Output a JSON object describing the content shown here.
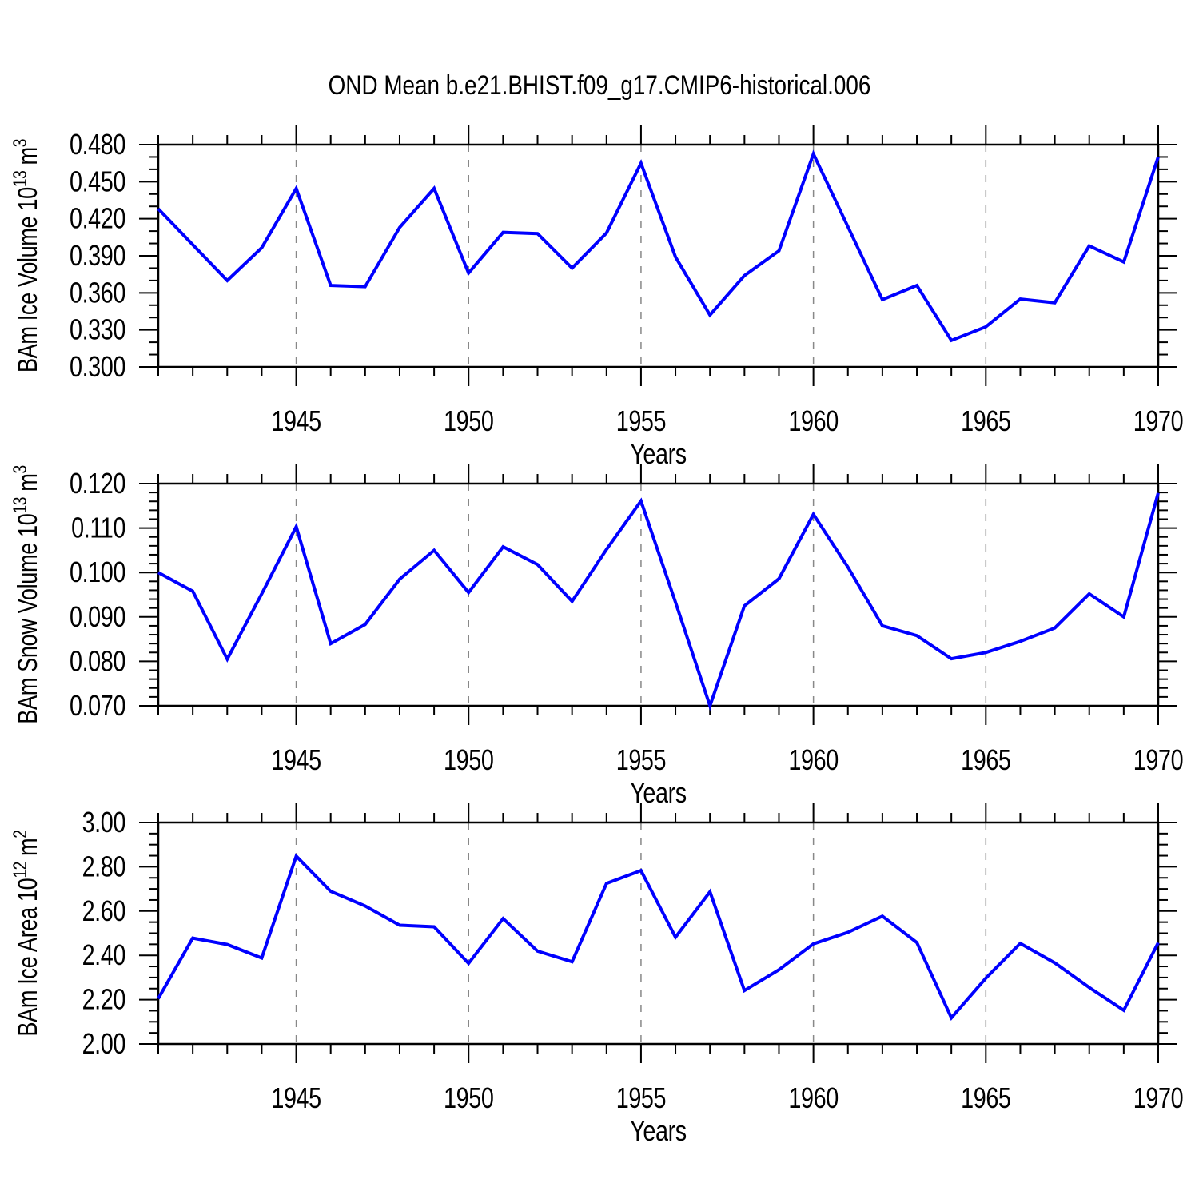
{
  "header": {
    "title": "OND Mean b.e21.BHIST.f09_g17.CMIP6-historical.006"
  },
  "chart_data": [
    {
      "id": "ice-volume",
      "type": "line",
      "xlabel": "Years",
      "ylabel_parts": [
        [
          "BAm Ice Volume 10",
          false
        ],
        [
          "13",
          true
        ],
        [
          " m",
          false
        ],
        [
          "3",
          true
        ]
      ],
      "line_color": "#0000ff",
      "xlim": [
        1941,
        1970
      ],
      "ylim": [
        0.3,
        0.48
      ],
      "x_gridlines": [
        1945,
        1950,
        1955,
        1960,
        1965
      ],
      "xticks": {
        "values": [
          1945,
          1950,
          1955,
          1960,
          1965,
          1970
        ],
        "labels": [
          "1945",
          "1950",
          "1955",
          "1960",
          "1965",
          "1970"
        ]
      },
      "yticks": {
        "values": [
          0.3,
          0.33,
          0.36,
          0.39,
          0.42,
          0.45,
          0.48
        ],
        "labels": [
          "0.300",
          "0.330",
          "0.360",
          "0.390",
          "0.420",
          "0.450",
          "0.480"
        ]
      },
      "yminor_div": 3,
      "x": [
        1941,
        1942,
        1943,
        1944,
        1945,
        1946,
        1947,
        1948,
        1949,
        1950,
        1951,
        1952,
        1953,
        1954,
        1955,
        1956,
        1957,
        1958,
        1959,
        1960,
        1961,
        1962,
        1963,
        1964,
        1965,
        1966,
        1967,
        1968,
        1969,
        1970
      ],
      "values": [
        0.428,
        0.399,
        0.37,
        0.3965,
        0.4445,
        0.366,
        0.365,
        0.413,
        0.4445,
        0.376,
        0.409,
        0.408,
        0.38,
        0.4085,
        0.465,
        0.389,
        0.342,
        0.374,
        0.394,
        0.4725,
        0.4135,
        0.3545,
        0.366,
        0.3215,
        0.3325,
        0.355,
        0.352,
        0.398,
        0.385,
        0.47
      ]
    },
    {
      "id": "snow-volume",
      "type": "line",
      "xlabel": "Years",
      "ylabel_parts": [
        [
          "BAm Snow Volume 10",
          false
        ],
        [
          "13",
          true
        ],
        [
          " m",
          false
        ],
        [
          "3",
          true
        ]
      ],
      "line_color": "#0000ff",
      "xlim": [
        1941,
        1970
      ],
      "ylim": [
        0.07,
        0.12
      ],
      "x_gridlines": [
        1945,
        1950,
        1955,
        1960,
        1965
      ],
      "xticks": {
        "values": [
          1945,
          1950,
          1955,
          1960,
          1965,
          1970
        ],
        "labels": [
          "1945",
          "1950",
          "1955",
          "1960",
          "1965",
          "1970"
        ]
      },
      "yticks": {
        "values": [
          0.07,
          0.08,
          0.09,
          0.1,
          0.11,
          0.12
        ],
        "labels": [
          "0.070",
          "0.080",
          "0.090",
          "0.100",
          "0.110",
          "0.120"
        ]
      },
      "yminor_div": 5,
      "x": [
        1941,
        1942,
        1943,
        1944,
        1945,
        1946,
        1947,
        1948,
        1949,
        1950,
        1951,
        1952,
        1953,
        1954,
        1955,
        1956,
        1957,
        1958,
        1959,
        1960,
        1961,
        1962,
        1963,
        1964,
        1965,
        1966,
        1967,
        1968,
        1969,
        1970
      ],
      "values": [
        0.1,
        0.0958,
        0.0805,
        0.0952,
        0.1103,
        0.084,
        0.0883,
        0.0985,
        0.105,
        0.0955,
        0.1058,
        0.1018,
        0.0935,
        0.1052,
        0.1161,
        0.0933,
        0.07,
        0.0925,
        0.0986,
        0.1131,
        0.1012,
        0.088,
        0.0858,
        0.0806,
        0.082,
        0.0845,
        0.0875,
        0.0952,
        0.09,
        0.1179
      ]
    },
    {
      "id": "ice-area",
      "type": "line",
      "xlabel": "Years",
      "ylabel_parts": [
        [
          "BAm Ice Area 10",
          false
        ],
        [
          "12",
          true
        ],
        [
          " m",
          false
        ],
        [
          "2",
          true
        ]
      ],
      "line_color": "#0000ff",
      "xlim": [
        1941,
        1970
      ],
      "ylim": [
        2.0,
        3.0
      ],
      "x_gridlines": [
        1945,
        1950,
        1955,
        1960,
        1965
      ],
      "xticks": {
        "values": [
          1945,
          1950,
          1955,
          1960,
          1965,
          1970
        ],
        "labels": [
          "1945",
          "1950",
          "1955",
          "1960",
          "1965",
          "1970"
        ]
      },
      "yticks": {
        "values": [
          2.0,
          2.2,
          2.4,
          2.6,
          2.8,
          3.0
        ],
        "labels": [
          "2.00",
          "2.20",
          "2.40",
          "2.60",
          "2.80",
          "3.00"
        ]
      },
      "yminor_div": 4,
      "x": [
        1941,
        1942,
        1943,
        1944,
        1945,
        1946,
        1947,
        1948,
        1949,
        1950,
        1951,
        1952,
        1953,
        1954,
        1955,
        1956,
        1957,
        1958,
        1959,
        1960,
        1961,
        1962,
        1963,
        1964,
        1965,
        1966,
        1967,
        1968,
        1969,
        1970
      ],
      "values": [
        2.205,
        2.478,
        2.449,
        2.388,
        2.848,
        2.689,
        2.623,
        2.536,
        2.529,
        2.364,
        2.566,
        2.419,
        2.371,
        2.725,
        2.783,
        2.482,
        2.687,
        2.241,
        2.335,
        2.452,
        2.504,
        2.577,
        2.458,
        2.118,
        2.297,
        2.454,
        2.366,
        2.255,
        2.152,
        2.457
      ]
    }
  ]
}
